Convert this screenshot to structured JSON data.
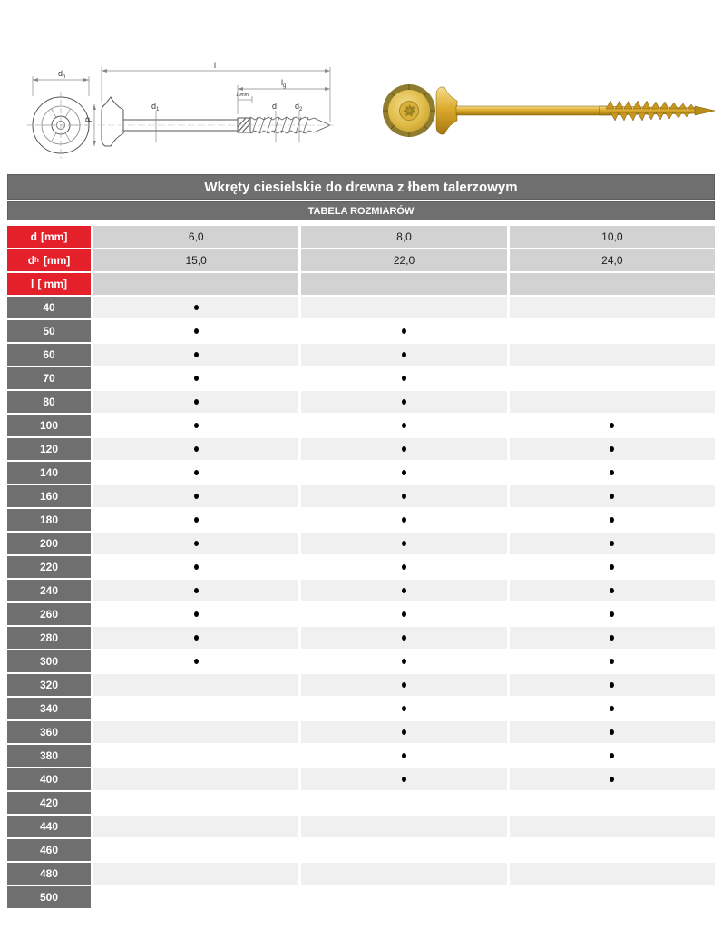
{
  "colors": {
    "header_gray": "#6f6f6f",
    "red": "#e4212b",
    "spec_value_bg": "#d2d2d2",
    "row_light_bg": "#f0f0f0",
    "row_white_bg": "#ffffff",
    "dot_color": "#000000",
    "screw_gold": "#dcab2e"
  },
  "diagram": {
    "labels": {
      "head_diameter_base": "d",
      "head_diameter_sub": "h",
      "length": "l",
      "thread_length_base": "l",
      "thread_length_sub": "g",
      "note": "10mm",
      "diameter": "d",
      "tip_diameter_base": "d",
      "tip_diameter_sub": "2",
      "shank_diameter_base": "d",
      "shank_diameter_sub": "1",
      "head_height": "P"
    }
  },
  "table": {
    "title": "Wkręty ciesielskie do drewna z łbem talerzowym",
    "subtitle": "TABELA ROZMIARÓW",
    "spec_rows": [
      {
        "label": {
          "base": "d",
          "sub": "",
          "unit": "[mm]"
        },
        "values": [
          "6,0",
          "8,0",
          "10,0"
        ]
      },
      {
        "label": {
          "base": "d",
          "sub": "h",
          "unit": "[mm]"
        },
        "values": [
          "15,0",
          "22,0",
          "24,0"
        ]
      },
      {
        "label": {
          "base": "l",
          "sub": "",
          "unit": "[ mm]"
        },
        "values": [
          "",
          "",
          ""
        ]
      }
    ],
    "length_rows": [
      {
        "length": "40",
        "available": [
          true,
          false,
          false
        ]
      },
      {
        "length": "50",
        "available": [
          true,
          true,
          false
        ]
      },
      {
        "length": "60",
        "available": [
          true,
          true,
          false
        ]
      },
      {
        "length": "70",
        "available": [
          true,
          true,
          false
        ]
      },
      {
        "length": "80",
        "available": [
          true,
          true,
          false
        ]
      },
      {
        "length": "100",
        "available": [
          true,
          true,
          true
        ]
      },
      {
        "length": "120",
        "available": [
          true,
          true,
          true
        ]
      },
      {
        "length": "140",
        "available": [
          true,
          true,
          true
        ]
      },
      {
        "length": "160",
        "available": [
          true,
          true,
          true
        ]
      },
      {
        "length": "180",
        "available": [
          true,
          true,
          true
        ]
      },
      {
        "length": "200",
        "available": [
          true,
          true,
          true
        ]
      },
      {
        "length": "220",
        "available": [
          true,
          true,
          true
        ]
      },
      {
        "length": "240",
        "available": [
          true,
          true,
          true
        ]
      },
      {
        "length": "260",
        "available": [
          true,
          true,
          true
        ]
      },
      {
        "length": "280",
        "available": [
          true,
          true,
          true
        ]
      },
      {
        "length": "300",
        "available": [
          true,
          true,
          true
        ]
      },
      {
        "length": "320",
        "available": [
          false,
          true,
          true
        ]
      },
      {
        "length": "340",
        "available": [
          false,
          true,
          true
        ]
      },
      {
        "length": "360",
        "available": [
          false,
          true,
          true
        ]
      },
      {
        "length": "380",
        "available": [
          false,
          true,
          true
        ]
      },
      {
        "length": "400",
        "available": [
          false,
          true,
          true
        ]
      },
      {
        "length": "420",
        "available": [
          false,
          false,
          false
        ]
      },
      {
        "length": "440",
        "available": [
          false,
          false,
          false
        ]
      },
      {
        "length": "460",
        "available": [
          false,
          false,
          false
        ]
      },
      {
        "length": "480",
        "available": [
          false,
          false,
          false
        ]
      },
      {
        "length": "500",
        "available": [
          false,
          false,
          false
        ]
      }
    ]
  }
}
